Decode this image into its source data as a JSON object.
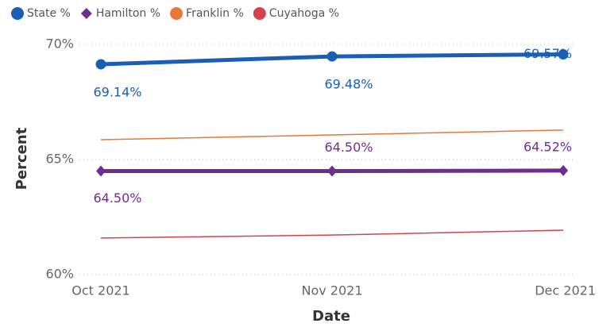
{
  "chart_data": {
    "type": "line",
    "x_label": "Date",
    "y_label": "Percent",
    "categories": [
      "Oct 2021",
      "Nov 2021",
      "Dec 2021"
    ],
    "ylim": [
      60,
      70
    ],
    "yticks": [
      {
        "value": 60,
        "label": "60%"
      },
      {
        "value": 65,
        "label": "65%"
      },
      {
        "value": 70,
        "label": "70%"
      }
    ],
    "grid": true,
    "legend": "top-left",
    "series": [
      {
        "name": "State %",
        "color": "#1a5fb4",
        "marker": "circle",
        "values": [
          69.14,
          69.48,
          69.57
        ],
        "value_labels": [
          "69.14%",
          "69.48%",
          "69.57%"
        ]
      },
      {
        "name": "Hamilton %",
        "color": "#6f2c91",
        "marker": "diamond",
        "values": [
          64.5,
          64.5,
          64.52
        ],
        "value_labels": [
          "64.50%",
          "64.50%",
          "64.52%"
        ]
      },
      {
        "name": "Franklin %",
        "color": "#e8773a",
        "marker": null,
        "values": [
          65.86,
          66.07,
          66.28
        ]
      },
      {
        "name": "Cuyahoga %",
        "color": "#d6414e",
        "marker": null,
        "values": [
          61.59,
          61.72,
          61.93
        ]
      }
    ]
  }
}
